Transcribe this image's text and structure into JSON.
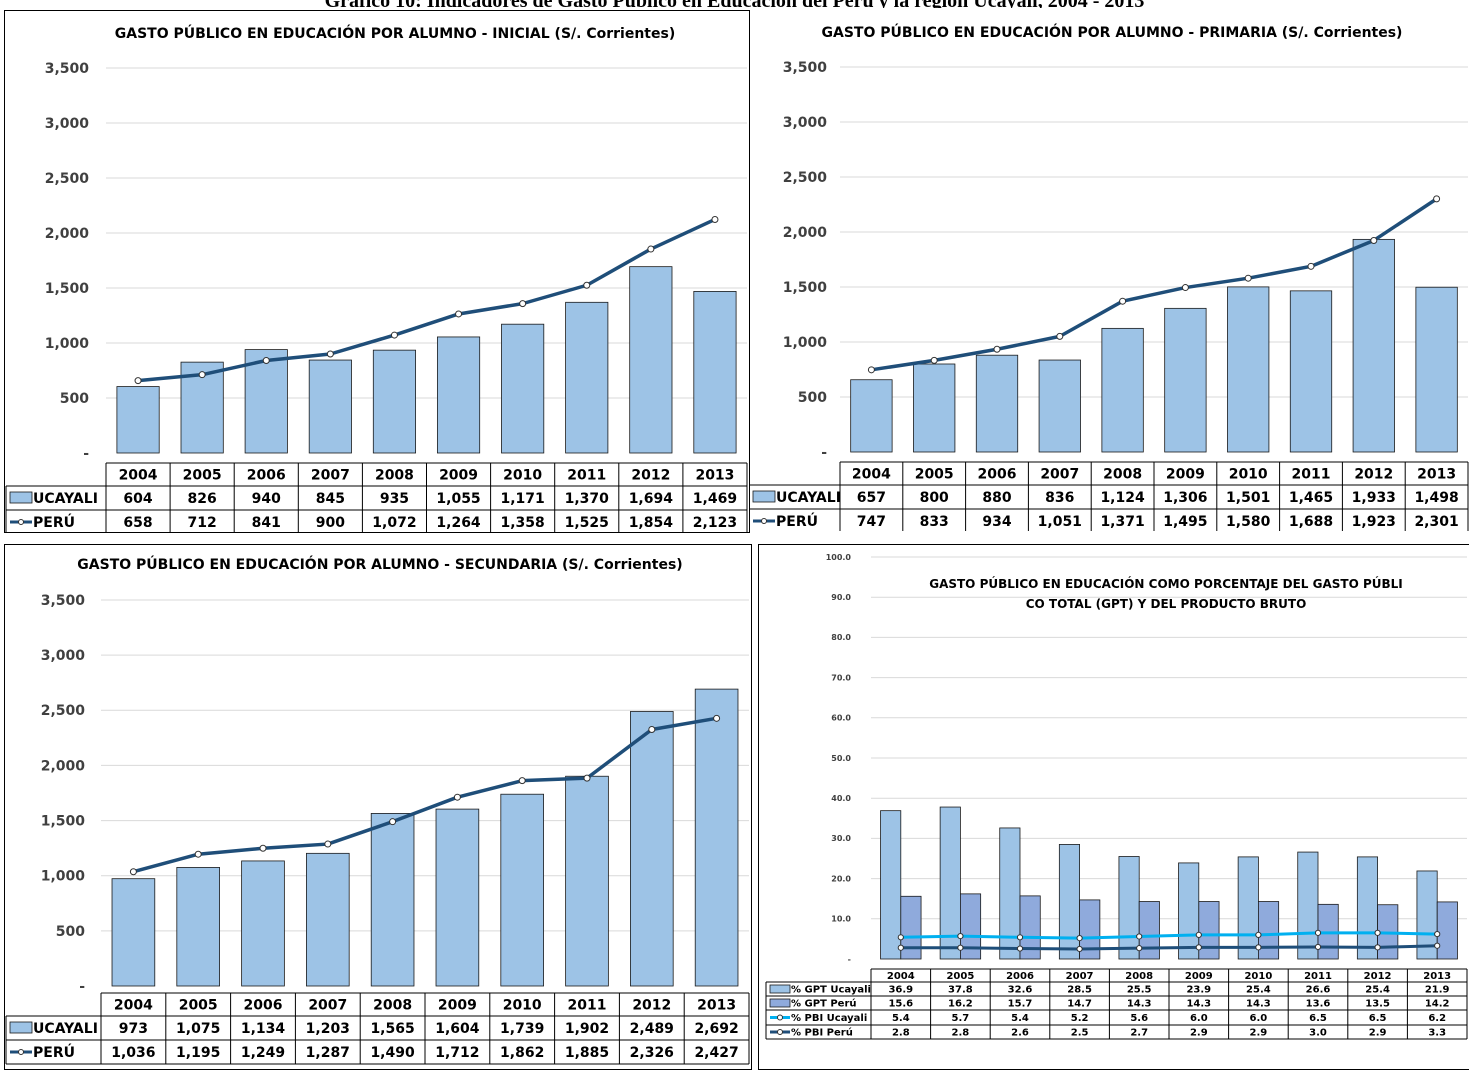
{
  "page_title": "Gráfico 10: Indicadores de Gasto Público en Educación del Perú y la región Ucayali, 2004 - 2013",
  "colors": {
    "bar_ucayali": "#9dc3e6",
    "bar_peru": "#8faadc",
    "line_peru": "#1f4e79",
    "line_ucayali": "#00b0f0",
    "grid": "#d9d9d9"
  },
  "chart_data": [
    {
      "id": "inicial",
      "type": "bar",
      "title": "GASTO PÚBLICO EN EDUCACIÓN POR ALUMNO - INICIAL (S/. Corrientes)",
      "categories": [
        "2004",
        "2005",
        "2006",
        "2007",
        "2008",
        "2009",
        "2010",
        "2011",
        "2012",
        "2013"
      ],
      "ylim": [
        0,
        3500
      ],
      "yticks": [
        "-",
        "500",
        "1,000",
        "1,500",
        "2,000",
        "2,500",
        "3,000",
        "3,500"
      ],
      "grid": true,
      "legend": "data-table",
      "series": [
        {
          "name": "UCAYALI",
          "kind": "bar",
          "values": [
            604,
            826,
            940,
            845,
            935,
            1055,
            1171,
            1370,
            1694,
            1469
          ],
          "labels": [
            "604",
            "826",
            "940",
            "845",
            "935",
            "1,055",
            "1,171",
            "1,370",
            "1,694",
            "1,469"
          ]
        },
        {
          "name": "PERÚ",
          "kind": "line",
          "values": [
            658,
            712,
            841,
            900,
            1072,
            1264,
            1358,
            1525,
            1854,
            2123
          ],
          "labels": [
            "658",
            "712",
            "841",
            "900",
            "1,072",
            "1,264",
            "1,358",
            "1,525",
            "1,854",
            "2,123"
          ]
        }
      ]
    },
    {
      "id": "primaria",
      "type": "bar",
      "title": "GASTO PÚBLICO EN EDUCACIÓN POR ALUMNO - PRIMARIA (S/. Corrientes)",
      "categories": [
        "2004",
        "2005",
        "2006",
        "2007",
        "2008",
        "2009",
        "2010",
        "2011",
        "2012",
        "2013"
      ],
      "ylim": [
        0,
        3500
      ],
      "yticks": [
        "-",
        "500",
        "1,000",
        "1,500",
        "2,000",
        "2,500",
        "3,000",
        "3,500"
      ],
      "grid": true,
      "legend": "data-table",
      "series": [
        {
          "name": "UCAYALI",
          "kind": "bar",
          "values": [
            657,
            800,
            880,
            836,
            1124,
            1306,
            1501,
            1465,
            1933,
            1498
          ],
          "labels": [
            "657",
            "800",
            "880",
            "836",
            "1,124",
            "1,306",
            "1,501",
            "1,465",
            "1,933",
            "1,498"
          ]
        },
        {
          "name": "PERÚ",
          "kind": "line",
          "values": [
            747,
            833,
            934,
            1051,
            1371,
            1495,
            1580,
            1688,
            1923,
            2301
          ],
          "labels": [
            "747",
            "833",
            "934",
            "1,051",
            "1,371",
            "1,495",
            "1,580",
            "1,688",
            "1,923",
            "2,301"
          ]
        }
      ]
    },
    {
      "id": "secundaria",
      "type": "bar",
      "title": "GASTO PÚBLICO EN EDUCACIÓN POR ALUMNO - SECUNDARIA (S/. Corrientes)",
      "categories": [
        "2004",
        "2005",
        "2006",
        "2007",
        "2008",
        "2009",
        "2010",
        "2011",
        "2012",
        "2013"
      ],
      "ylim": [
        0,
        3500
      ],
      "yticks": [
        "-",
        "500",
        "1,000",
        "1,500",
        "2,000",
        "2,500",
        "3,000",
        "3,500"
      ],
      "grid": true,
      "legend": "data-table",
      "series": [
        {
          "name": "UCAYALI",
          "kind": "bar",
          "values": [
            973,
            1075,
            1134,
            1203,
            1565,
            1604,
            1739,
            1902,
            2489,
            2692
          ],
          "labels": [
            "973",
            "1,075",
            "1,134",
            "1,203",
            "1,565",
            "1,604",
            "1,739",
            "1,902",
            "2,489",
            "2,692"
          ]
        },
        {
          "name": "PERÚ",
          "kind": "line",
          "values": [
            1036,
            1195,
            1249,
            1287,
            1490,
            1712,
            1862,
            1885,
            2326,
            2427
          ],
          "labels": [
            "1,036",
            "1,195",
            "1,249",
            "1,287",
            "1,490",
            "1,712",
            "1,862",
            "1,885",
            "2,326",
            "2,427"
          ]
        }
      ]
    },
    {
      "id": "porcentaje",
      "type": "bar",
      "title": "GASTO PÚBLICO EN EDUCACIÓN COMO PORCENTAJE DEL GASTO PÚBLICO TOTAL (GPT) Y DEL PRODUCTO BRUTO",
      "categories": [
        "2004",
        "2005",
        "2006",
        "2007",
        "2008",
        "2009",
        "2010",
        "2011",
        "2012",
        "2013"
      ],
      "ylim": [
        0,
        100
      ],
      "yticks": [
        "-",
        "10.0",
        "20.0",
        "30.0",
        "40.0",
        "50.0",
        "60.0",
        "70.0",
        "80.0",
        "90.0",
        "100.0"
      ],
      "grid": true,
      "legend": "data-table",
      "series": [
        {
          "name": "% GPT Ucayali",
          "kind": "bar",
          "values": [
            36.9,
            37.8,
            32.6,
            28.5,
            25.5,
            23.9,
            25.4,
            26.6,
            25.4,
            21.9
          ],
          "labels": [
            "36.9",
            "37.8",
            "32.6",
            "28.5",
            "25.5",
            "23.9",
            "25.4",
            "26.6",
            "25.4",
            "21.9"
          ]
        },
        {
          "name": "% GPT Perú",
          "kind": "bar",
          "values": [
            15.6,
            16.2,
            15.7,
            14.7,
            14.3,
            14.3,
            14.3,
            13.6,
            13.5,
            14.2
          ],
          "labels": [
            "15.6",
            "16.2",
            "15.7",
            "14.7",
            "14.3",
            "14.3",
            "14.3",
            "13.6",
            "13.5",
            "14.2"
          ]
        },
        {
          "name": "% PBI Ucayali",
          "kind": "line",
          "values": [
            5.4,
            5.7,
            5.4,
            5.2,
            5.6,
            6.0,
            6.0,
            6.5,
            6.5,
            6.2
          ],
          "labels": [
            "5.4",
            "5.7",
            "5.4",
            "5.2",
            "5.6",
            "6.0",
            "6.0",
            "6.5",
            "6.5",
            "6.2"
          ]
        },
        {
          "name": "% PBI Perú",
          "kind": "line",
          "values": [
            2.8,
            2.8,
            2.6,
            2.5,
            2.7,
            2.9,
            2.9,
            3.0,
            2.9,
            3.3
          ],
          "labels": [
            "2.8",
            "2.8",
            "2.6",
            "2.5",
            "2.7",
            "2.9",
            "2.9",
            "3.0",
            "2.9",
            "3.3"
          ]
        }
      ]
    }
  ]
}
